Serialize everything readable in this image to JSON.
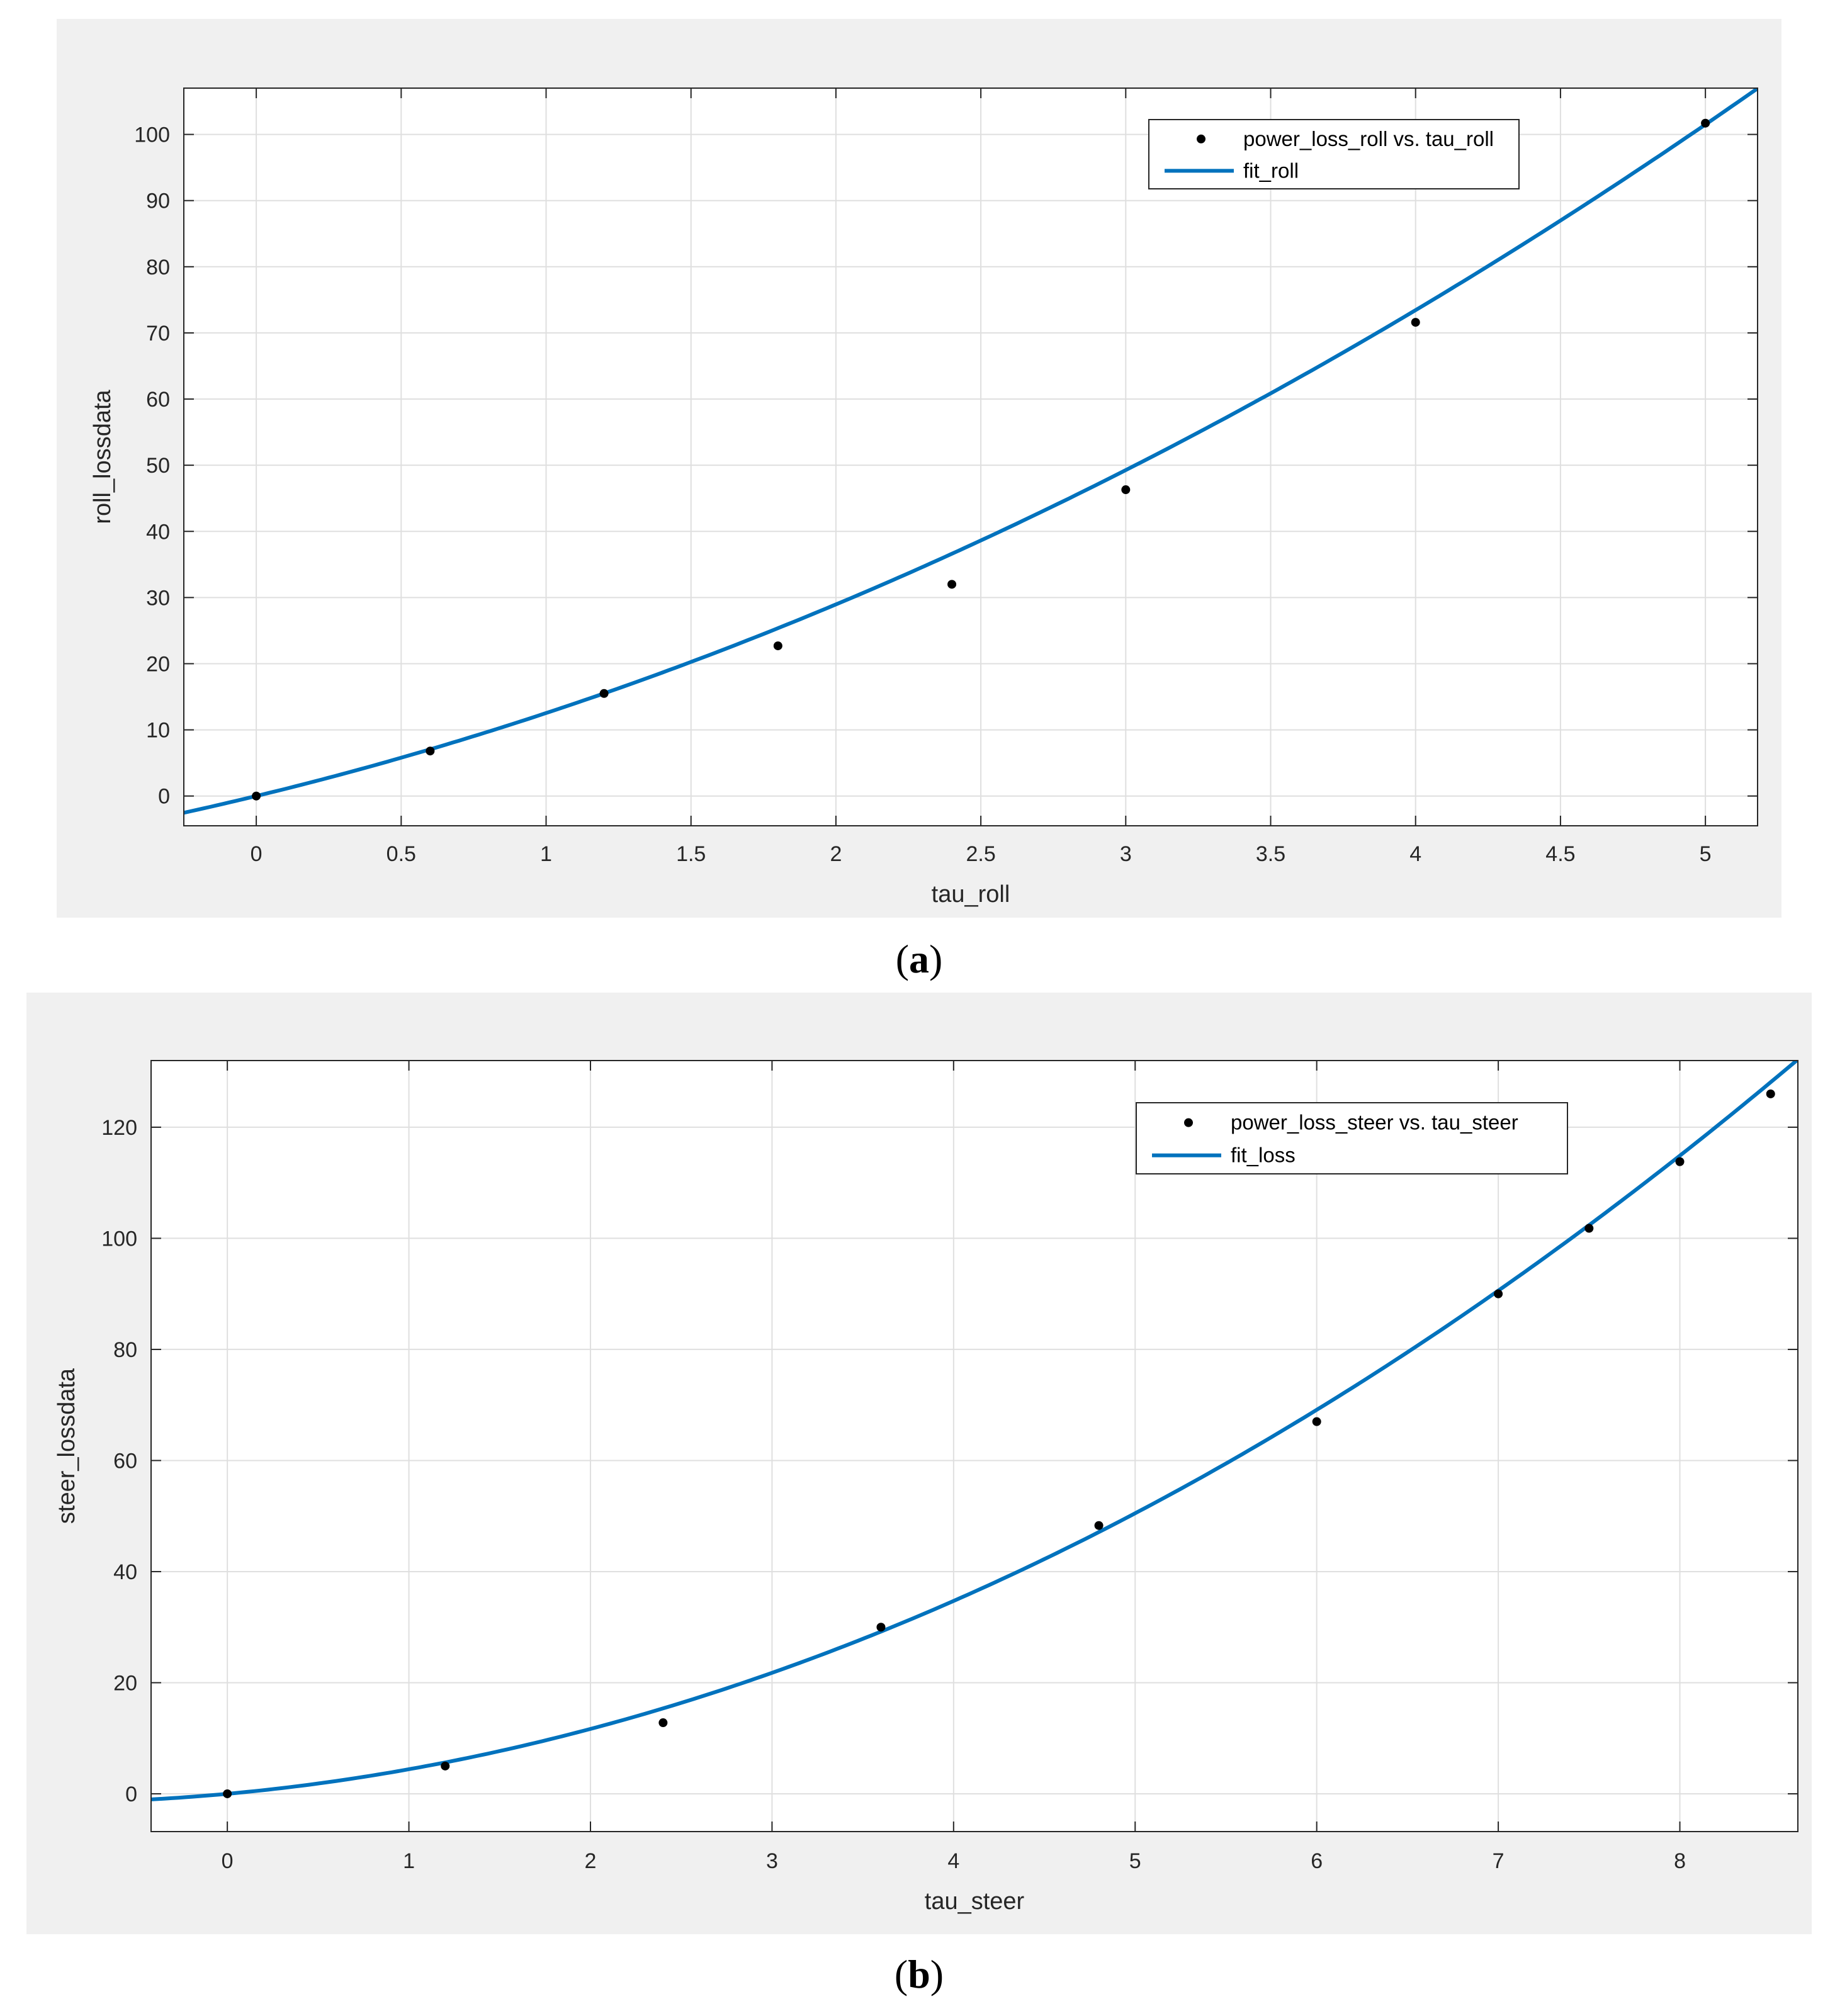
{
  "colors": {
    "panel_bg": "#f0f0f0",
    "axes_bg": "#ffffff",
    "grid": "#dfdfdf",
    "axis": "#262626",
    "fit_line": "#0072bd",
    "points": "#000000"
  },
  "chart_data": [
    {
      "type": "scatter",
      "panel": "a",
      "panel_label": {
        "open": "(",
        "letter": "a",
        "close": ")"
      },
      "xlabel": "tau_roll",
      "ylabel": "roll_lossdata",
      "xlim": [
        -0.25,
        5.18
      ],
      "ylim": [
        -4.5,
        107
      ],
      "xticks": [
        0,
        0.5,
        1,
        1.5,
        2,
        2.5,
        3,
        3.5,
        4,
        4.5,
        5
      ],
      "xtick_labels": [
        "0",
        "0.5",
        "1",
        "1.5",
        "2",
        "2.5",
        "3",
        "3.5",
        "4",
        "4.5",
        "5"
      ],
      "yticks": [
        0,
        10,
        20,
        30,
        40,
        50,
        60,
        70,
        80,
        90,
        100
      ],
      "ytick_labels": [
        "0",
        "10",
        "20",
        "30",
        "40",
        "50",
        "60",
        "70",
        "80",
        "90",
        "100"
      ],
      "grid": true,
      "legend_position": "top-right",
      "series": [
        {
          "name": "power_loss_roll vs. tau_roll",
          "kind": "points",
          "x": [
            0,
            0.6,
            1.2,
            1.8,
            2.4,
            3.0,
            4.0,
            5.0
          ],
          "y": [
            0,
            6.8,
            15.5,
            22.7,
            32.0,
            46.3,
            71.6,
            101.7
          ]
        },
        {
          "name": "fit_roll",
          "kind": "quadratic_fit",
          "coefficients": [
            1.94,
            10.6,
            0.0
          ]
        }
      ]
    },
    {
      "type": "scatter",
      "panel": "b",
      "panel_label": {
        "open": "(",
        "letter": "b",
        "close": ")"
      },
      "xlabel": "tau_steer",
      "ylabel": "steer_lossdata",
      "xlim": [
        -0.42,
        8.65
      ],
      "ylim": [
        -6.8,
        132
      ],
      "xticks": [
        0,
        1,
        2,
        3,
        4,
        5,
        6,
        7,
        8
      ],
      "xtick_labels": [
        "0",
        "1",
        "2",
        "3",
        "4",
        "5",
        "6",
        "7",
        "8"
      ],
      "yticks": [
        0,
        20,
        40,
        60,
        80,
        100,
        120
      ],
      "ytick_labels": [
        "0",
        "20",
        "40",
        "60",
        "80",
        "100",
        "120"
      ],
      "grid": true,
      "legend_position": "top-right",
      "series": [
        {
          "name": "power_loss_steer vs. tau_steer",
          "kind": "points",
          "x": [
            0,
            1.2,
            2.4,
            3.6,
            4.8,
            6.0,
            7.0,
            7.5,
            8.0,
            8.5
          ],
          "y": [
            0,
            5.0,
            12.8,
            30.0,
            48.3,
            67.0,
            90.0,
            101.8,
            113.8,
            126.0
          ]
        },
        {
          "name": "fit_loss",
          "kind": "quadratic_fit",
          "coefficients": [
            1.42,
            3.0,
            0.0
          ]
        }
      ]
    }
  ]
}
